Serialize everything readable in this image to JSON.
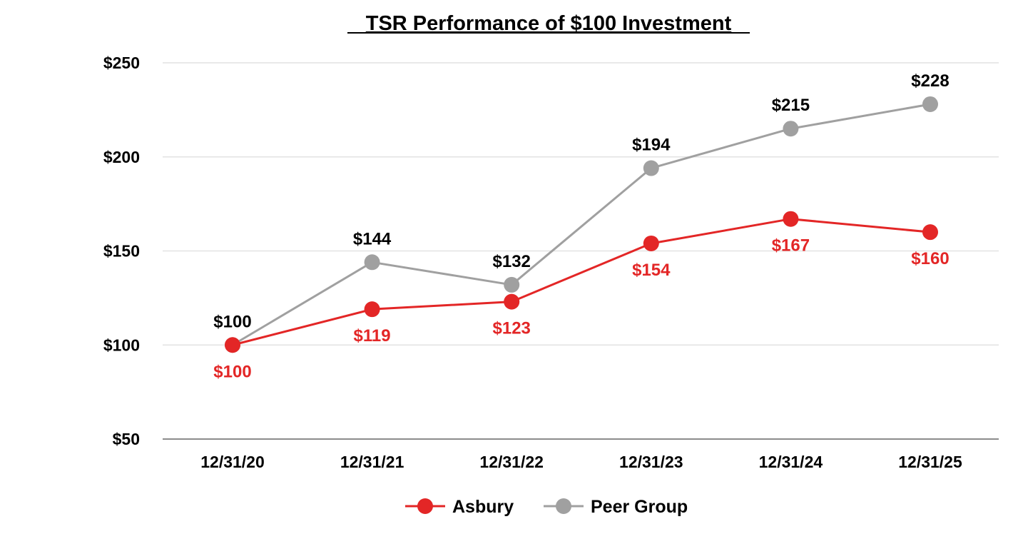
{
  "chart_data": {
    "type": "line",
    "title": "TSR Performance of $100 Investment",
    "xlabel": "",
    "ylabel": "",
    "categories": [
      "12/31/20",
      "12/31/21",
      "12/31/22",
      "12/31/23",
      "12/31/24",
      "12/31/25"
    ],
    "ylim": [
      50,
      250
    ],
    "yticks": [
      50,
      100,
      150,
      200,
      250
    ],
    "ytick_labels": [
      "$50",
      "$100",
      "$150",
      "$200",
      "$250"
    ],
    "grid": true,
    "legend_position": "bottom-center",
    "series": [
      {
        "name": "Asbury",
        "color": "#e32626",
        "label_placement": "below",
        "values": [
          100,
          119,
          123,
          154,
          167,
          160
        ],
        "labels": [
          "$100",
          "$119",
          "$123",
          "$154",
          "$167",
          "$160"
        ]
      },
      {
        "name": "Peer Group",
        "color": "#a0a0a0",
        "label_color": "#000000",
        "label_placement": "above",
        "values": [
          100,
          144,
          132,
          194,
          215,
          228
        ],
        "labels": [
          "$100",
          "$144",
          "$132",
          "$194",
          "$215",
          "$228"
        ]
      }
    ]
  }
}
